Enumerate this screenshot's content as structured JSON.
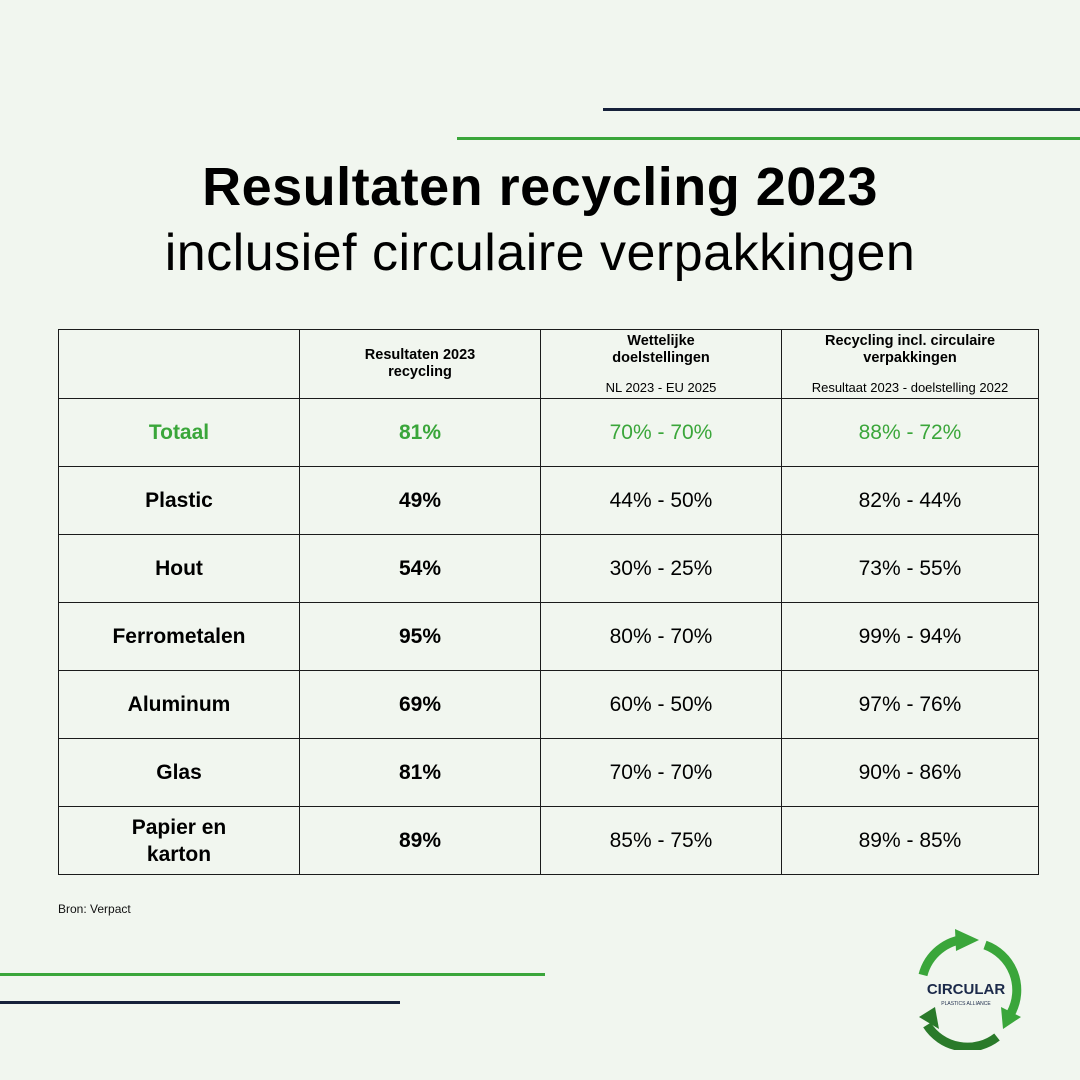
{
  "title": "Resultaten recycling 2023",
  "subtitle": "inclusief circulaire verpakkingen",
  "table": {
    "headers": {
      "col2": {
        "main": "Resultaten 2023 recycling"
      },
      "col3": {
        "main": "Wettelijke doelstellingen",
        "sub": "NL 2023 - EU 2025"
      },
      "col4": {
        "main": "Recycling incl. circulaire verpakkingen",
        "sub": "Resultaat 2023 - doelstelling 2022"
      }
    },
    "rows": [
      {
        "material": "Totaal",
        "result": "81%",
        "target": "70% - 70%",
        "circular": "88% - 72%",
        "highlight": true
      },
      {
        "material": "Plastic",
        "result": "49%",
        "target": "44% - 50%",
        "circular": "82% - 44%"
      },
      {
        "material": "Hout",
        "result": "54%",
        "target": "30% - 25%",
        "circular": "73% - 55%"
      },
      {
        "material": "Ferrometalen",
        "result": "95%",
        "target": "80% - 70%",
        "circular": "99% - 94%"
      },
      {
        "material": "Aluminum",
        "result": "69%",
        "target": "60% - 50%",
        "circular": "97% - 76%"
      },
      {
        "material": "Glas",
        "result": "81%",
        "target": "70% - 70%",
        "circular": "90% - 86%"
      },
      {
        "material": "Papier en karton",
        "result": "89%",
        "target": "85% - 75%",
        "circular": "89% - 85%"
      }
    ]
  },
  "source": "Bron: Verpact",
  "logo": {
    "text": "CIRCULAR",
    "tagline": "PLASTICS ALLIANCE"
  },
  "colors": {
    "background": "#f1f6ef",
    "accent_green": "#3aa63a",
    "dark_navy": "#16213a",
    "logo_orange": "#e8763a"
  }
}
